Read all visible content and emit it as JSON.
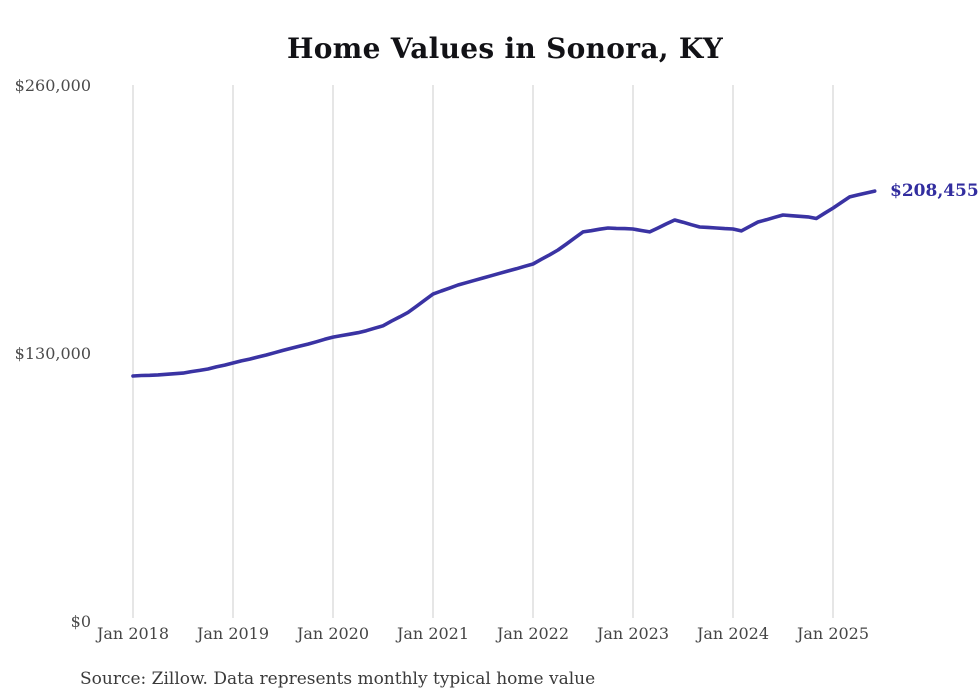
{
  "source_note": "Source: Zillow. Data represents monthly typical home value",
  "chart_data": {
    "type": "line",
    "title": "Home Values in Sonora, KY",
    "x_labels": [
      "Jan 2018",
      "Jan 2019",
      "Jan 2020",
      "Jan 2021",
      "Jan 2022",
      "Jan 2023",
      "Jan 2024",
      "Jan 2025"
    ],
    "y_ticks": [
      "$260,000",
      "$130,000",
      "$0"
    ],
    "y_tick_values": [
      260000,
      130000,
      0
    ],
    "ylim": [
      0,
      260000
    ],
    "grid": "vertical",
    "grid_color": "#cccccc",
    "legend": "none",
    "line_color": "#3a33a3",
    "end_label": "$208,455",
    "end_value": 208455,
    "series": [
      {
        "name": "Monthly typical home value",
        "start_month": "2018-01",
        "end_month": "2025-06",
        "frequency": "monthly",
        "values": [
          118600,
          118800,
          118900,
          119100,
          119400,
          119700,
          120000,
          120700,
          121300,
          122000,
          123000,
          123900,
          124900,
          125900,
          126800,
          127800,
          128800,
          129900,
          131000,
          132100,
          133100,
          134100,
          135200,
          136400,
          137500,
          138200,
          138900,
          139600,
          140600,
          141800,
          143000,
          145200,
          147300,
          149500,
          152400,
          155400,
          158400,
          159900,
          161300,
          162800,
          163900,
          165100,
          166200,
          167300,
          168500,
          169600,
          170700,
          171900,
          173000,
          175300,
          177500,
          179800,
          182700,
          185700,
          188600,
          189200,
          189900,
          190500,
          190300,
          190200,
          190000,
          189300,
          188600,
          190500,
          192500,
          194400,
          193300,
          192100,
          191000,
          190800,
          190500,
          190200,
          190000,
          189100,
          191300,
          193400,
          194500,
          195700,
          196800,
          196500,
          196200,
          195900,
          195100,
          197700,
          200200,
          202900,
          205600,
          206600,
          207500,
          208455
        ]
      }
    ]
  }
}
